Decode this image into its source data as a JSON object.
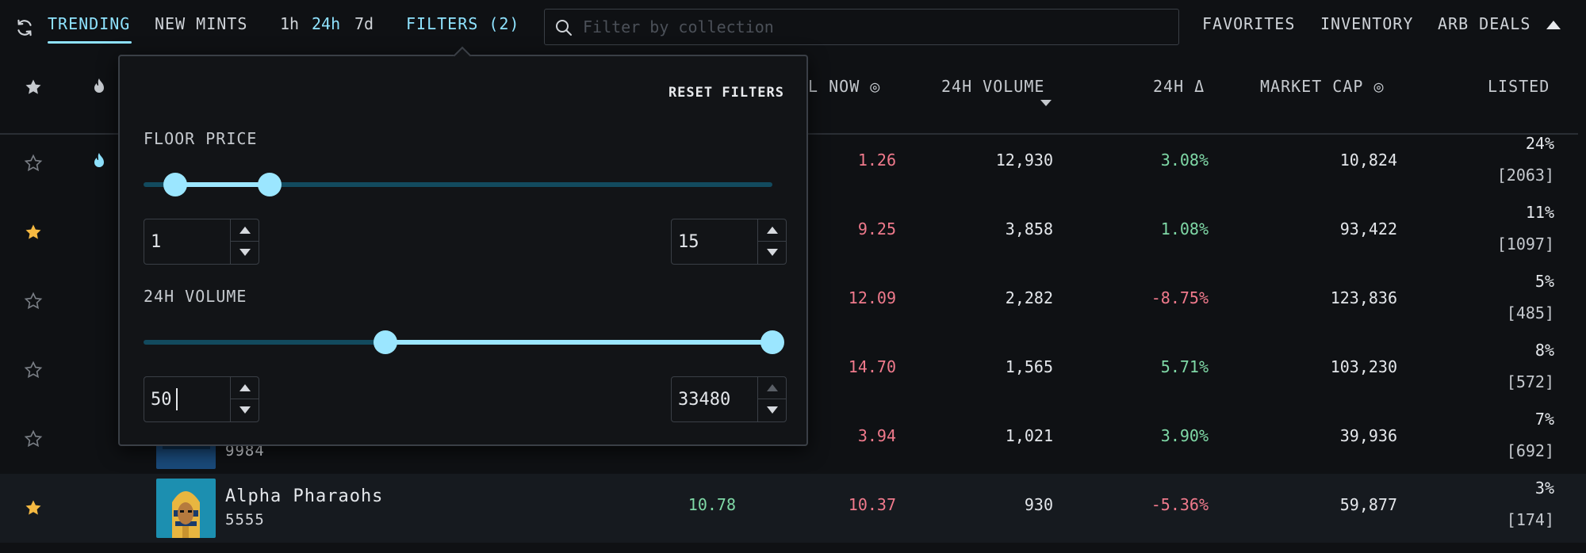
{
  "nav": {
    "tabs": [
      "TRENDING",
      "NEW MINTS"
    ],
    "timeframes": [
      "1h",
      "24h",
      "7d"
    ],
    "filters": "FILTERS (2)",
    "search_placeholder": "Filter by collection",
    "right_links": [
      "FAVORITES",
      "INVENTORY",
      "ARB DEALS"
    ]
  },
  "columns": {
    "sell_now": "LL NOW",
    "volume": "24H VOLUME",
    "change": "24H Δ",
    "market_cap": "MARKET CAP",
    "listed": "LISTED"
  },
  "filter_panel": {
    "reset": "RESET FILTERS",
    "floor_price": {
      "label": "FLOOR PRICE",
      "min": "1",
      "max": "15",
      "slider_low": 0.05,
      "slider_high": 0.2
    },
    "volume_24h": {
      "label": "24H VOLUME",
      "min": "50",
      "max": "33480",
      "slider_low": 0.385,
      "slider_high": 1.0
    }
  },
  "rows": [
    {
      "favorite": false,
      "trending": true,
      "name": "",
      "supply": "",
      "floor": "",
      "sell_now": "1.26",
      "volume": "12,930",
      "change": "3.08%",
      "change_dir": "up",
      "market_cap": "10,824",
      "listed_pct": "24%",
      "listed_count": "[2063]"
    },
    {
      "favorite": true,
      "trending": false,
      "name": "",
      "supply": "",
      "floor": "",
      "sell_now": "9.25",
      "volume": "3,858",
      "change": "1.08%",
      "change_dir": "up",
      "market_cap": "93,422",
      "listed_pct": "11%",
      "listed_count": "[1097]"
    },
    {
      "favorite": false,
      "trending": false,
      "name": "",
      "supply": "",
      "floor": "",
      "sell_now": "12.09",
      "volume": "2,282",
      "change": "-8.75%",
      "change_dir": "down",
      "market_cap": "123,836",
      "listed_pct": "5%",
      "listed_count": "[485]"
    },
    {
      "favorite": false,
      "trending": false,
      "name": "",
      "supply": "",
      "floor": "",
      "sell_now": "14.70",
      "volume": "1,565",
      "change": "5.71%",
      "change_dir": "up",
      "market_cap": "103,230",
      "listed_pct": "8%",
      "listed_count": "[572]"
    },
    {
      "favorite": false,
      "trending": false,
      "name": "",
      "supply": "9984",
      "floor": "",
      "sell_now": "3.94",
      "volume": "1,021",
      "change": "3.90%",
      "change_dir": "up",
      "market_cap": "39,936",
      "listed_pct": "7%",
      "listed_count": "[692]"
    },
    {
      "favorite": true,
      "trending": false,
      "name": "Alpha Pharaohs",
      "supply": "5555",
      "floor": "10.78",
      "sell_now": "10.37",
      "volume": "930",
      "change": "-5.36%",
      "change_dir": "down",
      "market_cap": "59,877",
      "listed_pct": "3%",
      "listed_count": "[174]"
    }
  ],
  "colors": {
    "accent": "#8fe3ff",
    "slider": "#9be6ff",
    "track": "#124a5e",
    "positive": "#7fd8a6",
    "negative": "#f07a8c",
    "star": "#f5b942"
  }
}
